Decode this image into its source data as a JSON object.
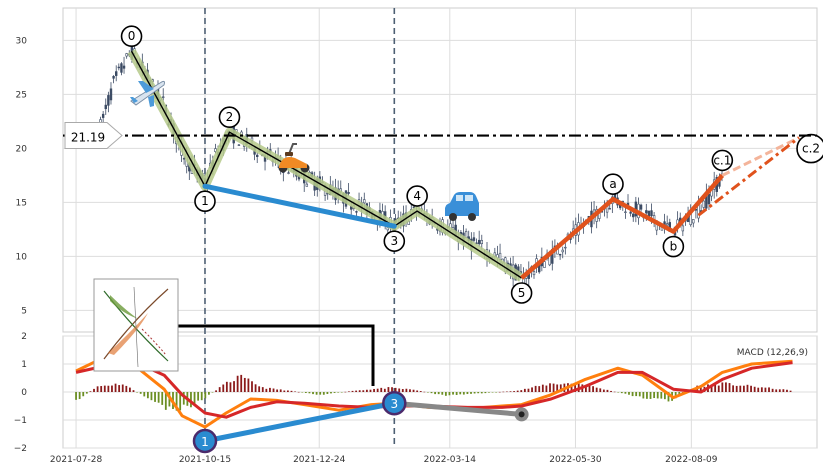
{
  "chart_data": [
    {
      "type": "candlestick",
      "panel": "price",
      "ylim": [
        3,
        33
      ],
      "yticks": [
        "5",
        "10",
        "15",
        "20",
        "25",
        "30"
      ],
      "grid": true,
      "xlim": [
        "2021-07-20",
        "2022-10-25"
      ],
      "xticks": [
        "2021-07-28",
        "2021-10-15",
        "2021-12-24",
        "2022-03-14",
        "2022-05-30",
        "2022-08-09"
      ],
      "price_path": [
        [
          "2021-08-12",
          22
        ],
        [
          "2021-08-20",
          26
        ],
        [
          "2021-08-31",
          29
        ],
        [
          "2021-09-10",
          26.5
        ],
        [
          "2021-09-20",
          24
        ],
        [
          "2021-09-30",
          20
        ],
        [
          "2021-10-08",
          18
        ],
        [
          "2021-10-15",
          16.8
        ],
        [
          "2021-10-22",
          19.5
        ],
        [
          "2021-10-30",
          21.5
        ],
        [
          "2021-11-15",
          20
        ],
        [
          "2021-12-01",
          18.5
        ],
        [
          "2021-12-20",
          17
        ],
        [
          "2022-01-10",
          15.3
        ],
        [
          "2022-01-25",
          14.2
        ],
        [
          "2022-02-08",
          12.8
        ],
        [
          "2022-02-22",
          14.2
        ],
        [
          "2022-03-08",
          13
        ],
        [
          "2022-03-25",
          11.5
        ],
        [
          "2022-04-12",
          10
        ],
        [
          "2022-04-27",
          8
        ],
        [
          "2022-05-15",
          10
        ],
        [
          "2022-06-05",
          13
        ],
        [
          "2022-06-22",
          15.3
        ],
        [
          "2022-07-10",
          14
        ],
        [
          "2022-07-29",
          12.3
        ],
        [
          "2022-08-15",
          14.5
        ],
        [
          "2022-08-28",
          17.5
        ]
      ],
      "horizontal_line": {
        "value": 21.19,
        "label": "21.19",
        "style": "dash-dot"
      },
      "vertical_lines": [
        "2021-10-15",
        "2022-02-08"
      ],
      "wave_points": [
        {
          "label": "0",
          "date": "2021-08-31",
          "value": 29
        },
        {
          "label": "1",
          "date": "2021-10-15",
          "value": 16.5
        },
        {
          "label": "2",
          "date": "2021-10-30",
          "value": 21.5
        },
        {
          "label": "3",
          "date": "2022-02-08",
          "value": 12.8
        },
        {
          "label": "4",
          "date": "2022-02-22",
          "value": 14.2
        },
        {
          "label": "5",
          "date": "2022-04-27",
          "value": 8
        }
      ],
      "correction_points": [
        {
          "label": "a",
          "date": "2022-06-22",
          "value": 15.3
        },
        {
          "label": "b",
          "date": "2022-07-29",
          "value": 12.3
        },
        {
          "label": "c.1",
          "date": "2022-08-28",
          "value": 17.5
        }
      ],
      "projection": {
        "label": "c.2",
        "date": "2022-10-14",
        "value": 21
      },
      "blue_line": [
        [
          "2021-10-15",
          16.5
        ],
        [
          "2022-02-08",
          12.8
        ]
      ]
    },
    {
      "type": "line",
      "panel": "macd",
      "title": "MACD (12,26,9)",
      "ylim": [
        -2,
        2
      ],
      "yticks": [
        "−2",
        "−1",
        "0",
        "1",
        "2"
      ],
      "grid": true,
      "macd_path": [
        [
          "2021-07-28",
          0.75
        ],
        [
          "2021-08-20",
          1.4
        ],
        [
          "2021-09-05",
          0.8
        ],
        [
          "2021-09-20",
          0.1
        ],
        [
          "2021-10-01",
          -0.85
        ],
        [
          "2021-10-15",
          -1.25
        ],
        [
          "2021-10-28",
          -0.75
        ],
        [
          "2021-11-12",
          -0.25
        ],
        [
          "2021-11-28",
          -0.3
        ],
        [
          "2021-12-15",
          -0.45
        ],
        [
          "2022-01-05",
          -0.65
        ],
        [
          "2022-01-25",
          -0.45
        ],
        [
          "2022-02-08",
          -0.4
        ],
        [
          "2022-03-01",
          -0.55
        ],
        [
          "2022-03-25",
          -0.6
        ],
        [
          "2022-04-15",
          -0.5
        ],
        [
          "2022-04-27",
          -0.45
        ],
        [
          "2022-05-15",
          -0.1
        ],
        [
          "2022-06-05",
          0.45
        ],
        [
          "2022-06-25",
          0.85
        ],
        [
          "2022-07-10",
          0.6
        ],
        [
          "2022-07-29",
          -0.2
        ],
        [
          "2022-08-15",
          0.2
        ],
        [
          "2022-08-28",
          0.7
        ],
        [
          "2022-09-15",
          1.0
        ],
        [
          "2022-10-10",
          1.1
        ]
      ],
      "signal_path": [
        [
          "2021-07-28",
          0.7
        ],
        [
          "2021-08-20",
          1.0
        ],
        [
          "2021-09-05",
          1.0
        ],
        [
          "2021-09-20",
          0.6
        ],
        [
          "2021-10-01",
          -0.1
        ],
        [
          "2021-10-15",
          -0.75
        ],
        [
          "2021-10-28",
          -0.9
        ],
        [
          "2021-11-12",
          -0.55
        ],
        [
          "2021-11-28",
          -0.35
        ],
        [
          "2021-12-15",
          -0.4
        ],
        [
          "2022-01-05",
          -0.5
        ],
        [
          "2022-01-25",
          -0.55
        ],
        [
          "2022-02-08",
          -0.5
        ],
        [
          "2022-03-01",
          -0.5
        ],
        [
          "2022-03-25",
          -0.55
        ],
        [
          "2022-04-15",
          -0.55
        ],
        [
          "2022-04-27",
          -0.5
        ],
        [
          "2022-05-15",
          -0.25
        ],
        [
          "2022-06-05",
          0.2
        ],
        [
          "2022-06-25",
          0.7
        ],
        [
          "2022-07-10",
          0.7
        ],
        [
          "2022-07-29",
          0.1
        ],
        [
          "2022-08-15",
          0.0
        ],
        [
          "2022-08-28",
          0.45
        ],
        [
          "2022-09-15",
          0.85
        ],
        [
          "2022-10-10",
          1.05
        ]
      ],
      "histogram_path": [
        [
          "2021-07-28",
          -0.35
        ],
        [
          "2021-08-10",
          0.2
        ],
        [
          "2021-08-25",
          0.3
        ],
        [
          "2021-09-08",
          -0.15
        ],
        [
          "2021-09-25",
          -0.7
        ],
        [
          "2021-10-10",
          -0.4
        ],
        [
          "2021-10-25",
          0.2
        ],
        [
          "2021-11-05",
          0.55
        ],
        [
          "2021-11-20",
          0.15
        ],
        [
          "2021-12-05",
          0.05
        ],
        [
          "2021-12-25",
          -0.1
        ],
        [
          "2022-01-15",
          0.05
        ],
        [
          "2022-02-05",
          0.15
        ],
        [
          "2022-02-20",
          0.08
        ],
        [
          "2022-03-10",
          -0.12
        ],
        [
          "2022-04-01",
          -0.05
        ],
        [
          "2022-04-25",
          0.05
        ],
        [
          "2022-05-15",
          0.3
        ],
        [
          "2022-06-01",
          0.3
        ],
        [
          "2022-06-20",
          0.05
        ],
        [
          "2022-07-10",
          -0.2
        ],
        [
          "2022-07-28",
          -0.3
        ],
        [
          "2022-08-12",
          0.2
        ],
        [
          "2022-08-28",
          0.3
        ],
        [
          "2022-09-15",
          0.2
        ],
        [
          "2022-10-10",
          0.05
        ]
      ],
      "points": [
        {
          "label": "1",
          "date": "2021-10-15",
          "value": -1.75
        },
        {
          "label": "3",
          "date": "2022-02-08",
          "value": -0.4
        },
        {
          "label": "",
          "date": "2022-04-27",
          "value": -0.8
        }
      ]
    }
  ],
  "colors": {
    "wave_green": "#b5c98a",
    "wave_dark": "#000000",
    "blue": "#2a8bd0",
    "orange": "#e0521c",
    "macd_line": "#ff7f0e",
    "signal_line": "#d62728",
    "hist_pos": "#8b1a1a",
    "hist_neg": "#6b8e23",
    "vline": "#4d5f73"
  },
  "icons": [
    "airplane-icon",
    "scooter-icon",
    "car-icon",
    "plant-thumbnail"
  ]
}
